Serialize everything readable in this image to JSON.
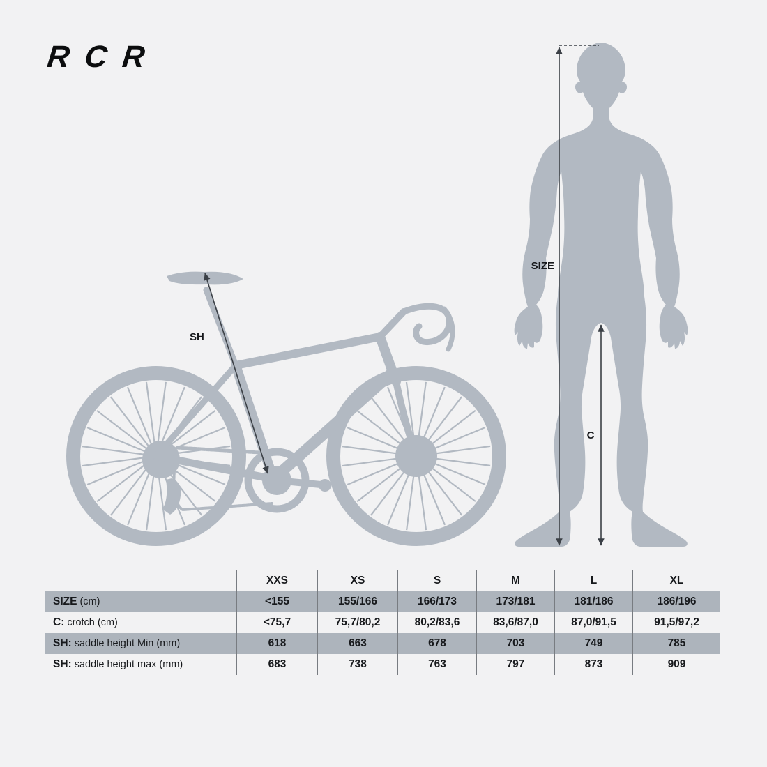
{
  "brand": {
    "logo": "RCR"
  },
  "diagram": {
    "bike_label": "SH",
    "person_height_label": "SIZE",
    "person_crotch_label": "C"
  },
  "table": {
    "columns": [
      "XXS",
      "XS",
      "S",
      "M",
      "L",
      "XL"
    ],
    "rows": [
      {
        "label_strong": "SIZE",
        "label_rest": "(cm)",
        "shaded": true,
        "values": [
          "<155",
          "155/166",
          "166/173",
          "173/181",
          "181/186",
          "186/196"
        ]
      },
      {
        "label_strong": "C:",
        "label_rest": "crotch (cm)",
        "shaded": false,
        "values": [
          "<75,7",
          "75,7/80,2",
          "80,2/83,6",
          "83,6/87,0",
          "87,0/91,5",
          "91,5/97,2"
        ]
      },
      {
        "label_strong": "SH:",
        "label_rest": "saddle height Min (mm)",
        "shaded": true,
        "values": [
          "618",
          "663",
          "678",
          "703",
          "749",
          "785"
        ]
      },
      {
        "label_strong": "SH:",
        "label_rest": "saddle height max (mm)",
        "shaded": false,
        "values": [
          "683",
          "738",
          "763",
          "797",
          "873",
          "909"
        ]
      }
    ]
  },
  "colors": {
    "background": "#f2f2f3",
    "silhouette": "#b2b9c2",
    "table_row_shade": "#adb4bc",
    "arrow": "#3b4046",
    "text": "#17191c"
  }
}
